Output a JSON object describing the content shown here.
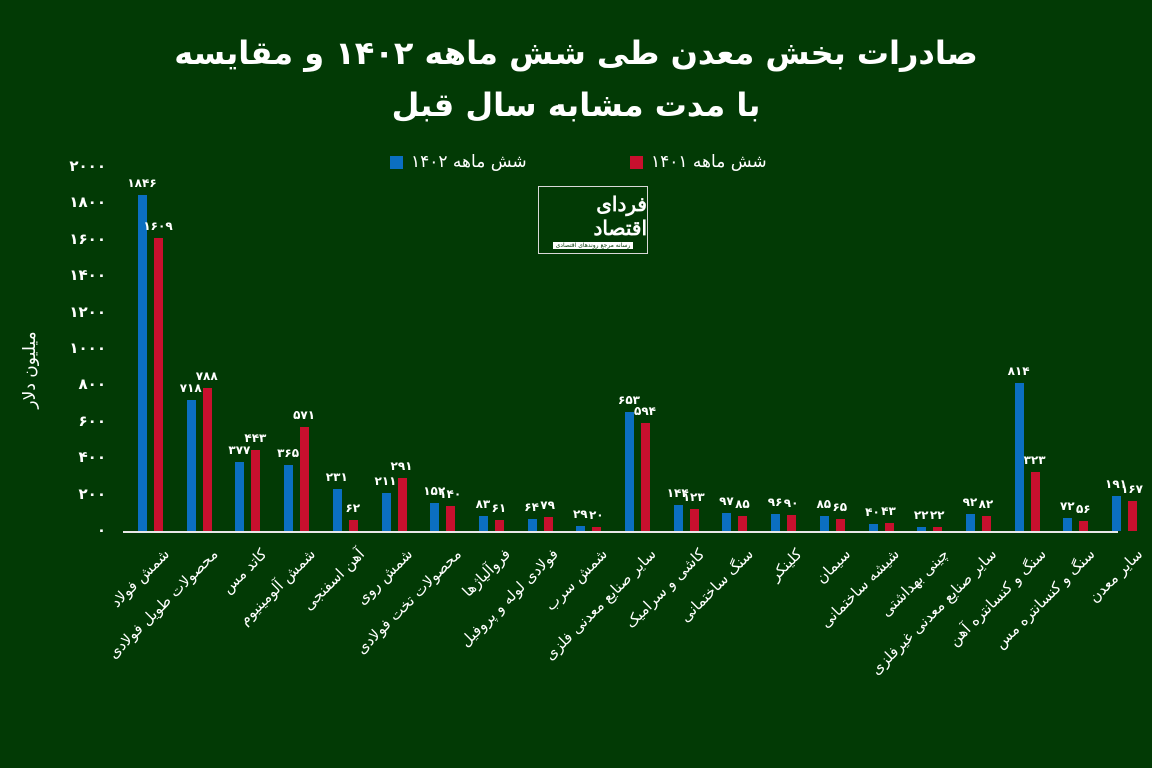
{
  "title": {
    "line1": "صادرات بخش معدن طی شش ماهه ۱۴۰۲ و مقایسه",
    "line2": "با مدت مشابه سال قبل"
  },
  "legend": [
    {
      "label": "شش ماهه ۱۴۰۲",
      "color": "#0b6fc1"
    },
    {
      "label": "شش ماهه  ۱۴۰۱",
      "color": "#c8102e"
    }
  ],
  "logo": {
    "name": "فردای اقتصاد",
    "tagline": "رسانه مرجع روندهای اقتصادی"
  },
  "yaxis": {
    "label": "میلیون دلار",
    "ticks": [
      "۰",
      "۲۰۰",
      "۴۰۰",
      "۶۰۰",
      "۸۰۰",
      "۱۰۰۰",
      "۱۲۰۰",
      "۱۴۰۰",
      "۱۶۰۰",
      "۱۸۰۰",
      "۲۰۰۰"
    ]
  },
  "chart_data": {
    "type": "bar",
    "title": "صادرات بخش معدن طی شش ماهه ۱۴۰۲ و مقایسه با مدت مشابه سال قبل",
    "xlabel": "",
    "ylabel": "میلیون دلار",
    "ylim": [
      0,
      2000
    ],
    "grid": false,
    "legend_position": "top",
    "categories": [
      "شمش فولاد",
      "محصولات طویل فولادی",
      "کاتد مس",
      "شمش آلومینیوم",
      "آهن اسفنجی",
      "شمش روی",
      "محصولات تخت فولادی",
      "فروآلیاژها",
      "فولادی لوله و پروفیل",
      "شمش سرب",
      "سایر صنایع معدنی فلزی",
      "کاشی و سرامیک",
      "سنگ ساختمانی",
      "کلینکر",
      "سیمان",
      "شیشه ساختمانی",
      "چینی بهداشتی",
      "سایر صنایع معدنی غیرفلزی",
      "سنگ و کنسانتره آهن",
      "سنگ و کنسانتره مس",
      "سایر معدن"
    ],
    "series": [
      {
        "name": "شش ماهه ۱۴۰۲",
        "color": "#0b6fc1",
        "values": [
          1846,
          718,
          377,
          365,
          231,
          211,
          152,
          83,
          64,
          29,
          653,
          144,
          97,
          96,
          85,
          40,
          22,
          92,
          814,
          72,
          191
        ],
        "labels": [
          "۱۸۴۶",
          "۷۱۸",
          "۳۷۷",
          "۳۶۵",
          "۲۳۱",
          "۲۱۱",
          "۱۵۲",
          "۸۳",
          "۶۴",
          "۲۹",
          "۶۵۳",
          "۱۴۴",
          "۹۷",
          "۹۶",
          "۸۵",
          "۴۰",
          "۲۲",
          "۹۲",
          "۸۱۴",
          "۷۲",
          "۱۹۱"
        ]
      },
      {
        "name": "شش ماهه ۱۴۰۱",
        "color": "#c8102e",
        "values": [
          1609,
          788,
          443,
          571,
          62,
          291,
          140,
          61,
          79,
          20,
          594,
          123,
          85,
          90,
          65,
          43,
          22,
          82,
          323,
          56,
          167
        ],
        "labels": [
          "۱۶۰۹",
          "۷۸۸",
          "۴۴۳",
          "۵۷۱",
          "۶۲",
          "۲۹۱",
          "۱۴۰",
          "۶۱",
          "۷۹",
          "۲۰",
          "۵۹۴",
          "۱۲۳",
          "۸۵",
          "۹۰",
          "۶۵",
          "۴۳",
          "۲۲",
          "۸۲",
          "۳۲۳",
          "۵۶",
          "۱۶۷"
        ]
      }
    ]
  }
}
